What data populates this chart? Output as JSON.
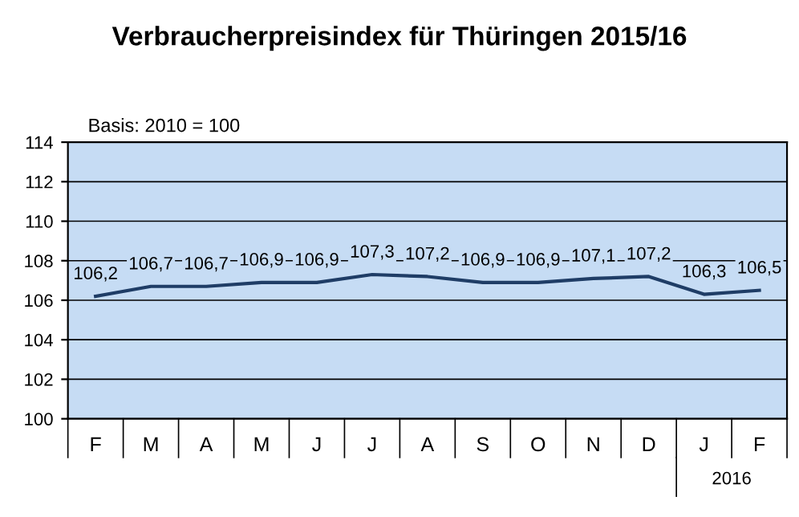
{
  "chart_data": {
    "type": "line",
    "title": "Verbraucherpreisindex für Thüringen 2015/16",
    "categories": [
      "F",
      "M",
      "A",
      "M",
      "J",
      "J",
      "A",
      "S",
      "O",
      "N",
      "D",
      "J",
      "F"
    ],
    "series": [
      {
        "color": "#1f3d66",
        "values": [
          106.2,
          106.7,
          106.7,
          106.9,
          106.9,
          107.3,
          107.2,
          106.9,
          106.9,
          107.1,
          107.2,
          106.3,
          106.5
        ]
      }
    ],
    "value_labels": [
      "106,2",
      "106,7",
      "106,7",
      "106,9",
      "106,9",
      "107,3",
      "107,2",
      "106,9",
      "106,9",
      "107,1",
      "107,2",
      "106,3",
      "106,5"
    ],
    "ylim": [
      100,
      114
    ],
    "yticks": [
      100,
      102,
      104,
      106,
      108,
      110,
      112,
      114
    ],
    "grid": "y",
    "legend": false,
    "marker": "none",
    "line_style": "solid",
    "annotations": [
      "Basis: 2010 = 100",
      "2016"
    ]
  }
}
